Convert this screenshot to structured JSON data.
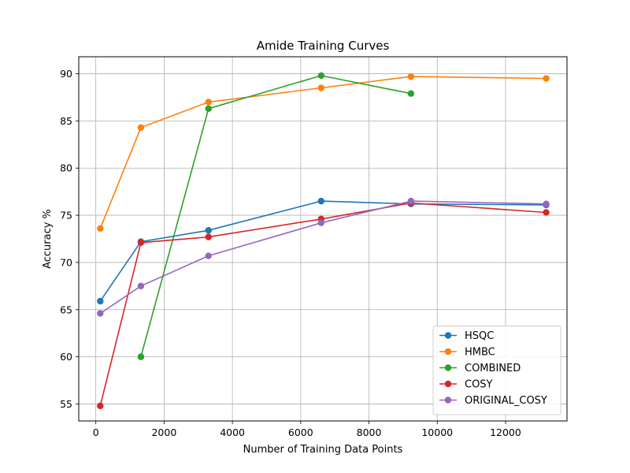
{
  "chart_data": {
    "type": "line",
    "title": "Amide Training Curves",
    "xlabel": "Number of Training Data Points",
    "ylabel": "Accuracy %",
    "xlim": [
      -500,
      13800
    ],
    "ylim": [
      53.2,
      91.8
    ],
    "xticks": [
      0,
      2000,
      4000,
      6000,
      8000,
      10000,
      12000
    ],
    "yticks": [
      55,
      60,
      65,
      70,
      75,
      80,
      85,
      90
    ],
    "grid": true,
    "legend_position": "lower-right",
    "series": [
      {
        "name": "HSQC",
        "color": "#1f77b4",
        "points": [
          [
            130,
            65.9
          ],
          [
            1320,
            72.2
          ],
          [
            3300,
            73.4
          ],
          [
            6600,
            76.5
          ],
          [
            9230,
            76.2
          ],
          [
            13190,
            76.1
          ]
        ]
      },
      {
        "name": "HMBC",
        "color": "#ff7f0e",
        "points": [
          [
            130,
            73.6
          ],
          [
            1320,
            84.3
          ],
          [
            3300,
            87.0
          ],
          [
            6600,
            88.5
          ],
          [
            9230,
            89.7
          ],
          [
            13190,
            89.5
          ]
        ]
      },
      {
        "name": "COMBINED",
        "color": "#2ca02c",
        "points": [
          [
            1320,
            60.0
          ],
          [
            3300,
            86.3
          ],
          [
            6600,
            89.8
          ],
          [
            9230,
            87.9
          ]
        ]
      },
      {
        "name": "COSY",
        "color": "#d62728",
        "points": [
          [
            130,
            54.8
          ],
          [
            1320,
            72.1
          ],
          [
            3300,
            72.7
          ],
          [
            6600,
            74.6
          ],
          [
            9230,
            76.3
          ],
          [
            13190,
            75.3
          ]
        ]
      },
      {
        "name": "ORIGINAL_COSY",
        "color": "#9467bd",
        "points": [
          [
            130,
            64.6
          ],
          [
            1320,
            67.5
          ],
          [
            3300,
            70.7
          ],
          [
            6600,
            74.2
          ],
          [
            9230,
            76.5
          ],
          [
            13190,
            76.2
          ]
        ]
      }
    ]
  }
}
